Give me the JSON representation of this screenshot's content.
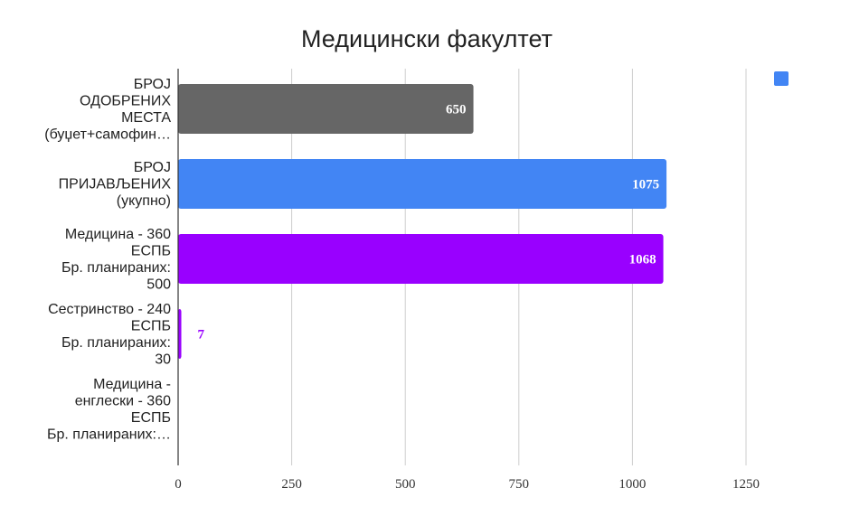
{
  "chart_data": {
    "type": "bar",
    "orientation": "horizontal",
    "title": "Медицински факултет",
    "xlabel": "",
    "ylabel": "",
    "xlim": [
      0,
      1300
    ],
    "xticks": [
      0,
      250,
      500,
      750,
      1000,
      1250
    ],
    "grid": "vertical",
    "legend": {
      "position": "top-right",
      "entries": [
        {
          "name": "",
          "color": "#4285f4"
        }
      ]
    },
    "categories": [
      [
        "БРОЈ",
        "ОДОБРЕНИХ",
        "МЕСТА",
        "(буџет+самофин…"
      ],
      [
        "БРОЈ",
        "ПРИЈАВЉЕНИХ",
        "(укупно)"
      ],
      [
        "Медицина - 360",
        "ЕСПБ",
        "Бр. планираних:",
        "500"
      ],
      [
        "Сестринство - 240",
        "ЕСПБ",
        "Бр. планираних:",
        "30"
      ],
      [
        "Медицина -",
        "енглески - 360",
        "ЕСПБ",
        "Бр. планираних:…"
      ]
    ],
    "values": [
      650,
      1075,
      1068,
      7,
      0
    ],
    "data_labels": [
      "650",
      "1075",
      "1068",
      "7",
      ""
    ],
    "colors": [
      "#666666",
      "#4285f4",
      "#9900ff",
      "#9900ff",
      "#9900ff"
    ]
  }
}
